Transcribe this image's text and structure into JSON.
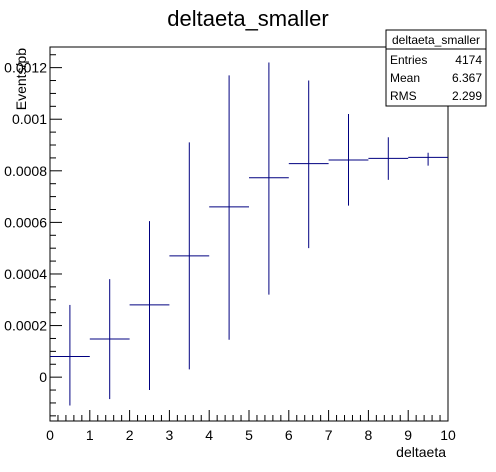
{
  "chart_data": {
    "type": "scatter",
    "title": "deltaeta_smaller",
    "xlabel": "deltaeta",
    "ylabel": "Events/pb",
    "xlim": [
      0,
      10
    ],
    "ylim": [
      -0.00017,
      0.00128
    ],
    "x_ticks": [
      0,
      1,
      2,
      3,
      4,
      5,
      6,
      7,
      8,
      9,
      10
    ],
    "y_ticks": [
      0,
      0.0002,
      0.0004,
      0.0006,
      0.0008,
      0.001,
      0.0012
    ],
    "y_tick_labels": [
      "0",
      "0.0002",
      "0.0004",
      "0.0006",
      "0.0008",
      "0.001",
      "0.0012"
    ],
    "grid": false,
    "series": [
      {
        "color": "#000080",
        "points": [
          {
            "x": 0.5,
            "y": 8e-05,
            "xerr": 0.5,
            "yerr_low": 0.00019,
            "yerr_high": 0.0002
          },
          {
            "x": 1.5,
            "y": 0.000148,
            "xerr": 0.5,
            "yerr_low": 0.000233,
            "yerr_high": 0.000232
          },
          {
            "x": 2.5,
            "y": 0.00028,
            "xerr": 0.5,
            "yerr_low": 0.00033,
            "yerr_high": 0.000325
          },
          {
            "x": 3.5,
            "y": 0.00047,
            "xerr": 0.5,
            "yerr_low": 0.00044,
            "yerr_high": 0.00044
          },
          {
            "x": 4.5,
            "y": 0.00066,
            "xerr": 0.5,
            "yerr_low": 0.000515,
            "yerr_high": 0.00051
          },
          {
            "x": 5.5,
            "y": 0.000773,
            "xerr": 0.5,
            "yerr_low": 0.000453,
            "yerr_high": 0.000447
          },
          {
            "x": 6.5,
            "y": 0.000828,
            "xerr": 0.5,
            "yerr_low": 0.000328,
            "yerr_high": 0.000322
          },
          {
            "x": 7.5,
            "y": 0.000842,
            "xerr": 0.5,
            "yerr_low": 0.000177,
            "yerr_high": 0.000178
          },
          {
            "x": 8.5,
            "y": 0.000848,
            "xerr": 0.5,
            "yerr_low": 8.3e-05,
            "yerr_high": 8.2e-05
          },
          {
            "x": 9.5,
            "y": 0.000852,
            "xerr": 0.5,
            "yerr_low": 3.2e-05,
            "yerr_high": 1.8e-05
          }
        ]
      }
    ],
    "stats_box": {
      "name": "deltaeta_smaller",
      "rows": [
        {
          "label": "Entries",
          "value": "4174"
        },
        {
          "label": "Mean",
          "value": "6.367"
        },
        {
          "label": "RMS",
          "value": "2.299"
        }
      ]
    }
  }
}
